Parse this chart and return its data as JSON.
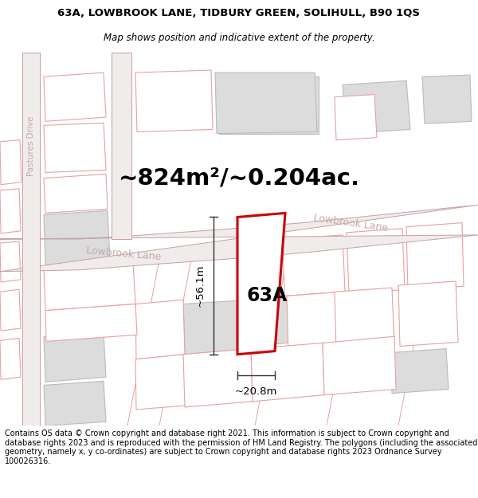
{
  "title_line1": "63A, LOWBROOK LANE, TIDBURY GREEN, SOLIHULL, B90 1QS",
  "title_line2": "Map shows position and indicative extent of the property.",
  "area_text": "~824m²/~0.204ac.",
  "label_63A": "63A",
  "dim_width": "~20.8m",
  "dim_height": "~56.1m",
  "road_label_diag": "Lowbrook Lane",
  "road_label_horiz": "Lowbrook Lane",
  "road_label_vert": "Pastures Drive",
  "footer_text": "Contains OS data © Crown copyright and database right 2021. This information is subject to Crown copyright and database rights 2023 and is reproduced with the permission of HM Land Registry. The polygons (including the associated geometry, namely x, y co-ordinates) are subject to Crown copyright and database rights 2023 Ordnance Survey 100026316.",
  "map_bg": "#faf8f8",
  "highlight_color": "#cc0000",
  "highlight_fill": "#ffffff",
  "road_fill": "#f0ecec",
  "other_poly_stroke": "#e8a0a0",
  "other_poly_fill": "#ffffff",
  "grey_poly_fill": "#dcdcdc",
  "grey_poly_stroke": "#bbbbbb",
  "road_edge_color": "#c8a0a0",
  "road_label_color": "#c8a8a8",
  "title_fontsize": 9.5,
  "subtitle_fontsize": 8.5,
  "footer_fontsize": 7.0,
  "area_fontsize": 21,
  "label_fontsize": 17,
  "dim_fontsize": 9.5,
  "road_fontsize": 9
}
